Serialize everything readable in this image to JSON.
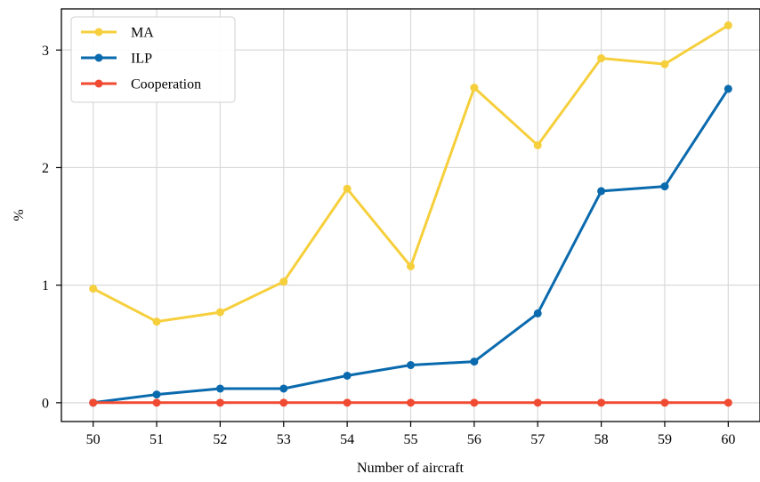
{
  "chart_data": {
    "type": "line",
    "title": "",
    "xlabel": "Number of aircraft",
    "ylabel": "%",
    "x": [
      50,
      51,
      52,
      53,
      54,
      55,
      56,
      57,
      58,
      59,
      60
    ],
    "xlim": [
      49.5,
      60.5
    ],
    "ylim": [
      -0.16,
      3.35
    ],
    "xticks": [
      "50",
      "51",
      "52",
      "53",
      "54",
      "55",
      "56",
      "57",
      "58",
      "59",
      "60"
    ],
    "yticks": [
      0,
      1,
      2,
      3
    ],
    "ytick_labels": [
      "0",
      "1",
      "2",
      "3"
    ],
    "grid": true,
    "legend_position": "top-left",
    "series": [
      {
        "name": "MA",
        "color": "#f6cf3c",
        "values": [
          0.97,
          0.69,
          0.77,
          1.03,
          1.82,
          1.16,
          2.68,
          2.19,
          2.93,
          2.88,
          3.21
        ]
      },
      {
        "name": "ILP",
        "color": "#0a6aae",
        "values": [
          0.0,
          0.07,
          0.12,
          0.12,
          0.23,
          0.32,
          0.35,
          0.76,
          1.8,
          1.84,
          2.67
        ]
      },
      {
        "name": "Cooperation",
        "color": "#f04b32",
        "values": [
          0,
          0,
          0,
          0,
          0,
          0,
          0,
          0,
          0,
          0,
          0
        ]
      }
    ]
  }
}
